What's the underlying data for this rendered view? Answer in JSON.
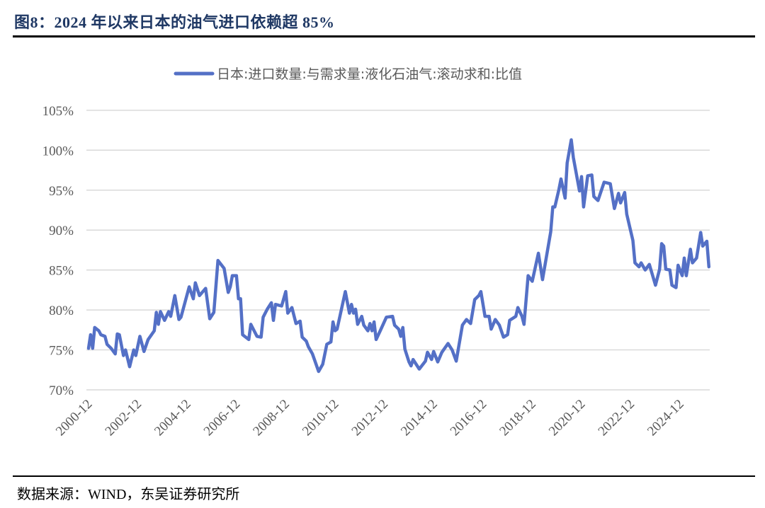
{
  "header": {
    "title": "图8：2024 年以来日本的油气进口依赖超 85%"
  },
  "footer": {
    "source": "数据来源：WIND，东吴证券研究所"
  },
  "chart_data": {
    "type": "line",
    "title": "",
    "xlabel": "",
    "ylabel": "",
    "ylim": [
      70,
      105
    ],
    "yticks": [
      "70%",
      "75%",
      "80%",
      "85%",
      "90%",
      "95%",
      "100%",
      "105%"
    ],
    "xticks": [
      "2000-12",
      "2002-12",
      "2004-12",
      "2006-12",
      "2008-12",
      "2010-12",
      "2012-12",
      "2014-12",
      "2016-12",
      "2018-12",
      "2020-12",
      "2022-12",
      "2024-12"
    ],
    "grid": true,
    "legend_position": "top",
    "color": "#5470c6",
    "series": [
      {
        "name": "日本:进口数量:与需求量:液化石油气:滚动求和:比值",
        "unit": "%",
        "x": [
          "2000-12",
          "2001-01",
          "2001-02",
          "2001-03",
          "2001-05",
          "2001-06",
          "2001-08",
          "2001-09",
          "2001-11",
          "2002-01",
          "2002-02",
          "2002-03",
          "2002-05",
          "2002-06",
          "2002-08",
          "2002-10",
          "2002-11",
          "2003-01",
          "2003-03",
          "2003-05",
          "2003-08",
          "2003-09",
          "2003-10",
          "2003-11",
          "2004-01",
          "2004-03",
          "2004-04",
          "2004-06",
          "2004-08",
          "2004-09",
          "2005-01",
          "2005-03",
          "2005-04",
          "2005-06",
          "2005-09",
          "2005-11",
          "2006-01",
          "2006-03",
          "2006-06",
          "2006-08",
          "2006-09",
          "2006-10",
          "2006-12",
          "2007-01",
          "2007-02",
          "2007-03",
          "2007-06",
          "2007-07",
          "2007-10",
          "2007-12",
          "2008-01",
          "2008-03",
          "2008-05",
          "2008-06",
          "2008-07",
          "2008-10",
          "2008-12",
          "2009-01",
          "2009-03",
          "2009-05",
          "2009-07",
          "2009-08",
          "2009-10",
          "2009-11",
          "2010-01",
          "2010-04",
          "2010-06",
          "2010-08",
          "2010-10",
          "2010-11",
          "2010-12",
          "2011-01",
          "2011-05",
          "2011-07",
          "2011-08",
          "2011-09",
          "2011-10",
          "2011-11",
          "2012-01",
          "2012-02",
          "2012-04",
          "2012-05",
          "2012-06",
          "2012-07",
          "2012-08",
          "2012-10",
          "2013-01",
          "2013-04",
          "2013-05",
          "2013-07",
          "2013-08",
          "2013-09",
          "2013-10",
          "2013-12",
          "2014-01",
          "2014-02",
          "2014-05",
          "2014-08",
          "2014-09",
          "2014-11",
          "2014-12",
          "2015-02",
          "2015-04",
          "2015-07",
          "2015-09",
          "2015-11",
          "2016-02",
          "2016-04",
          "2016-06",
          "2016-08",
          "2016-10",
          "2016-11",
          "2017-01",
          "2017-03",
          "2017-04",
          "2017-06",
          "2017-08",
          "2017-10",
          "2017-12",
          "2018-01",
          "2018-04",
          "2018-05",
          "2018-07",
          "2018-08",
          "2018-10",
          "2018-12",
          "2019-03",
          "2019-05",
          "2019-09",
          "2019-10",
          "2019-11",
          "2020-01",
          "2020-02",
          "2020-04",
          "2020-05",
          "2020-07",
          "2020-08",
          "2020-11",
          "2020-12",
          "2021-01",
          "2021-03",
          "2021-05",
          "2021-06",
          "2021-08",
          "2021-11",
          "2022-02",
          "2022-04",
          "2022-06",
          "2022-07",
          "2022-09",
          "2022-10",
          "2022-12",
          "2023-01",
          "2023-02",
          "2023-04",
          "2023-05",
          "2023-07",
          "2023-09",
          "2023-12",
          "2024-02",
          "2024-03",
          "2024-04",
          "2024-05",
          "2024-07",
          "2024-08",
          "2024-10",
          "2024-11",
          "2025-01",
          "2025-02",
          "2025-03",
          "2025-05",
          "2025-06",
          "2025-08",
          "2025-10",
          "2025-11",
          "2026-01",
          "2026-02"
        ],
        "values": [
          75.2,
          76.9,
          75.2,
          77.8,
          77.4,
          76.9,
          76.7,
          75.7,
          75.2,
          74.5,
          77.0,
          76.9,
          74.3,
          75.0,
          72.9,
          75.0,
          74.3,
          76.7,
          74.8,
          76.3,
          77.4,
          79.7,
          78.2,
          79.8,
          78.7,
          79.8,
          79.2,
          81.8,
          78.8,
          79.1,
          82.9,
          81.4,
          83.4,
          81.8,
          82.7,
          78.9,
          79.7,
          86.2,
          85.2,
          82.2,
          82.9,
          84.3,
          84.3,
          81.4,
          81.4,
          76.9,
          76.3,
          78.2,
          76.7,
          76.6,
          79.1,
          80.1,
          80.9,
          78.7,
          80.7,
          80.5,
          82.3,
          79.6,
          80.3,
          78.3,
          78.6,
          76.6,
          76.1,
          75.4,
          74.5,
          72.3,
          73.2,
          75.7,
          76.0,
          78.5,
          77.4,
          77.6,
          82.3,
          79.6,
          80.7,
          79.6,
          80.1,
          78.2,
          79.2,
          78.1,
          77.4,
          78.3,
          77.4,
          78.5,
          76.3,
          77.4,
          79.1,
          79.2,
          78.1,
          77.6,
          76.7,
          77.8,
          75.1,
          73.5,
          73.0,
          73.8,
          72.6,
          73.6,
          74.7,
          73.8,
          74.8,
          73.5,
          74.7,
          75.8,
          75.0,
          73.6,
          78.1,
          78.8,
          78.3,
          81.3,
          81.8,
          82.3,
          79.2,
          79.2,
          77.6,
          78.8,
          78.1,
          76.6,
          76.9,
          78.7,
          79.2,
          80.3,
          79.2,
          78.2,
          84.3,
          83.6,
          87.1,
          83.8,
          89.8,
          92.9,
          92.9,
          95.1,
          96.4,
          94.0,
          98.4,
          101.3,
          99.1,
          94.9,
          96.7,
          92.9,
          96.8,
          96.9,
          94.2,
          93.7,
          96.0,
          95.8,
          92.7,
          94.6,
          93.4,
          94.7,
          92.0,
          89.8,
          88.7,
          85.9,
          85.4,
          85.9,
          85.0,
          85.7,
          83.1,
          85.1,
          88.3,
          88.0,
          85.1,
          85.0,
          83.1,
          82.8,
          85.6,
          84.3,
          86.5,
          84.3,
          87.6,
          85.9,
          86.5,
          89.7,
          88.0,
          88.6,
          85.4
        ]
      }
    ]
  }
}
